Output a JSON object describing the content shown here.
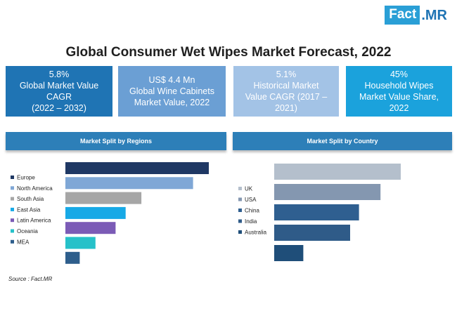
{
  "brand": {
    "logo_box": "Fact",
    "logo_rest": ".MR"
  },
  "title": "Global Consumer Wet Wipes Market Forecast, 2022",
  "stats": [
    {
      "lines": [
        "5.8%",
        "Global Market Value",
        "CAGR",
        "(2022 – 2032)"
      ],
      "color": "#1f74b4"
    },
    {
      "lines": [
        "US$ 4.4 Mn",
        "Global Wine Cabinets",
        "Market Value, 2022"
      ],
      "color": "#6b9fd4"
    },
    {
      "lines": [
        "5.1%",
        "Historical Market",
        "Value CAGR (2017 –",
        "2021)"
      ],
      "color": "#a3c3e6"
    },
    {
      "lines": [
        "45%",
        "Household Wipes",
        "Market Value Share,",
        "2022"
      ],
      "color": "#1ba2dc"
    }
  ],
  "source": "Source : Fact.MR",
  "chart_data": [
    {
      "type": "bar",
      "title": "Market Split by Regions",
      "categories": [
        "Europe",
        "North America",
        "South Asia",
        "East Asia",
        "Latin America",
        "Oceania",
        "MEA"
      ],
      "values": [
        100,
        89,
        53,
        42,
        35,
        21,
        10
      ],
      "colors": [
        "#1f3864",
        "#7fa7d6",
        "#a6a6a6",
        "#17a9e6",
        "#7b5bb6",
        "#26c1c9",
        "#2e5e8c"
      ],
      "grid": false,
      "legend": "left"
    },
    {
      "type": "bar",
      "title": "Market Split by Country",
      "categories": [
        "UK",
        "USA",
        "China",
        "India",
        "Australia"
      ],
      "values": [
        100,
        84,
        67,
        60,
        23
      ],
      "colors": [
        "#b4bfcc",
        "#8497b0",
        "#2f5f90",
        "#2f5b88",
        "#1f4e79"
      ],
      "grid": false,
      "legend": "left"
    }
  ]
}
